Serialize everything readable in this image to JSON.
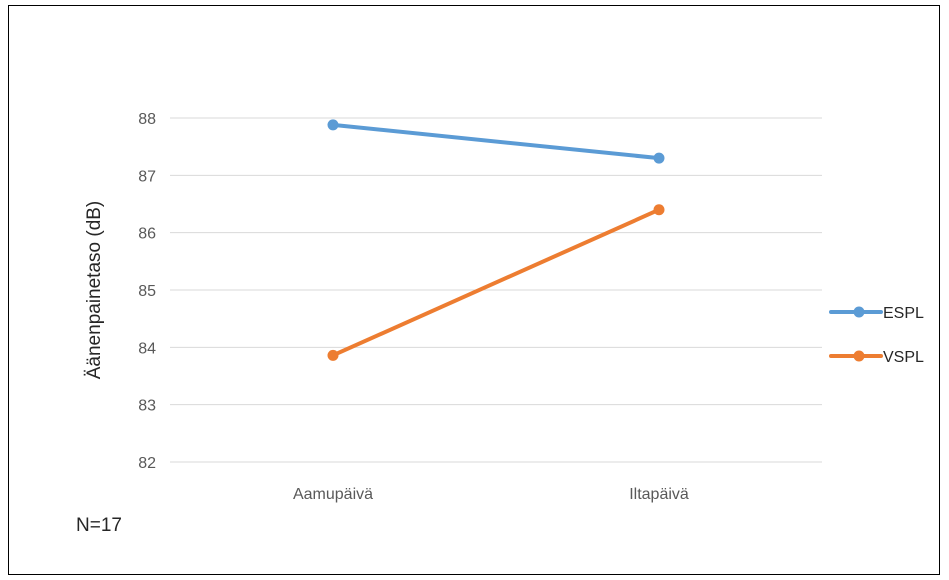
{
  "chart_data": {
    "type": "line",
    "categories": [
      "Aamupäivä",
      "Iltapäivä"
    ],
    "series": [
      {
        "name": "ESPL",
        "values": [
          87.88,
          87.3
        ],
        "color": "#5B9BD5"
      },
      {
        "name": "VSPL",
        "values": [
          83.86,
          86.4
        ],
        "color": "#ED7D31"
      }
    ],
    "ylabel": "Äänenpainetaso (dB)",
    "xlabel": "",
    "ylim": [
      82,
      88
    ],
    "yticks": [
      82,
      83,
      84,
      85,
      86,
      87,
      88
    ],
    "grid": true,
    "legend_position": "right"
  },
  "note": "N=17"
}
